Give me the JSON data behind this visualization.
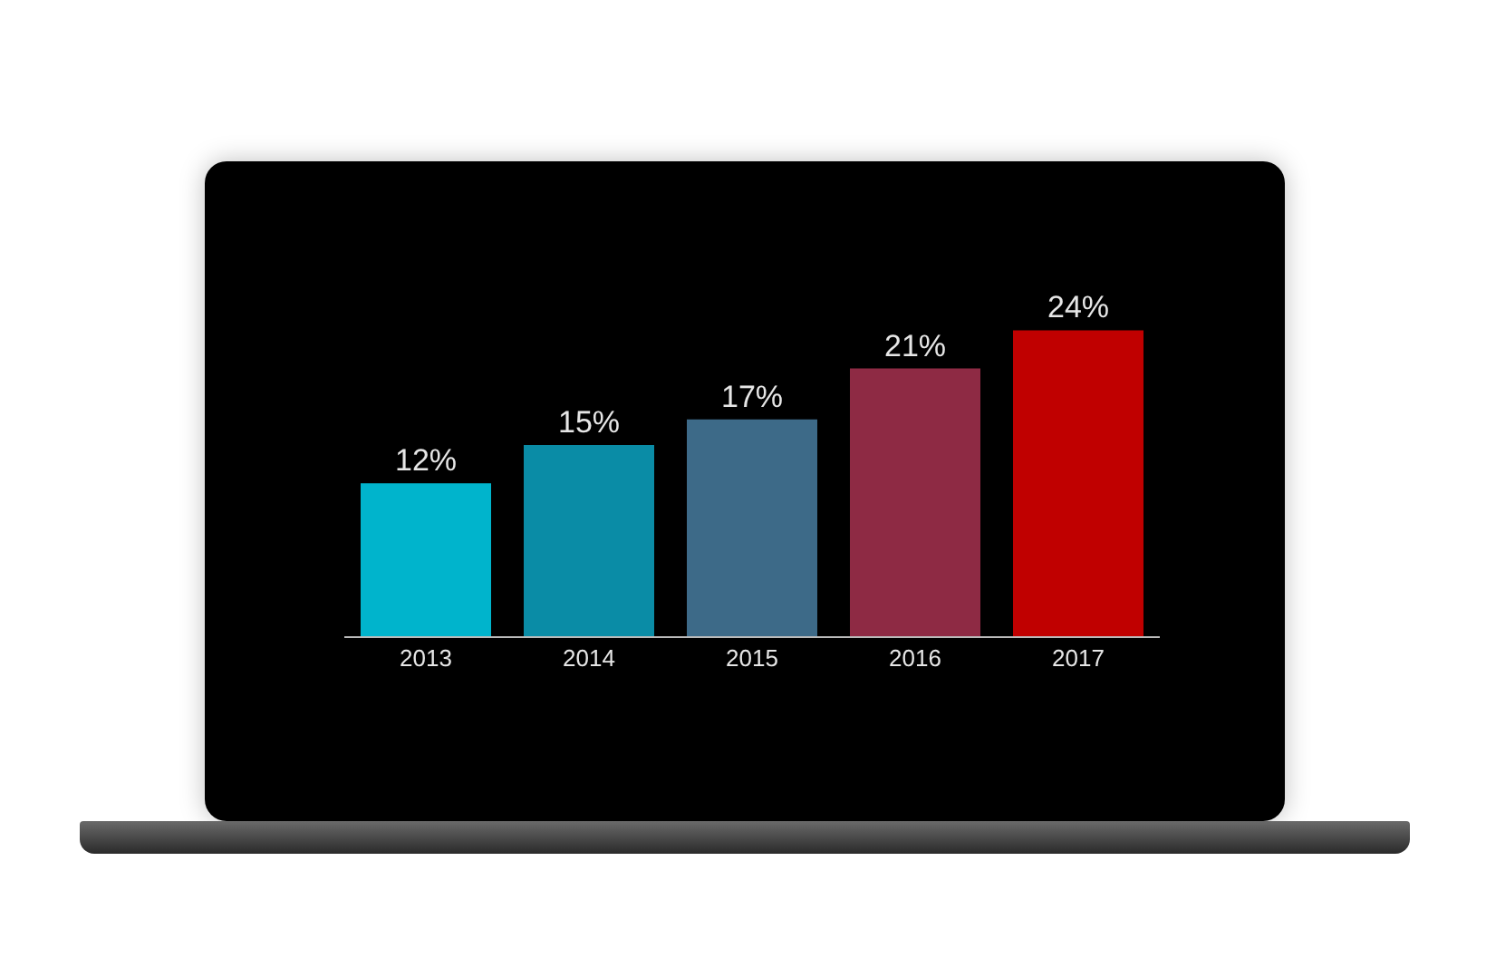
{
  "chart_data": {
    "type": "bar",
    "categories": [
      "2013",
      "2014",
      "2015",
      "2016",
      "2017"
    ],
    "values": [
      12,
      15,
      17,
      21,
      24
    ],
    "colors": [
      "#00b4cc",
      "#0a8ca6",
      "#3d6a88",
      "#8e2a44",
      "#c00000"
    ],
    "value_labels": [
      "12%",
      "15%",
      "17%",
      "21%",
      "24%"
    ]
  }
}
